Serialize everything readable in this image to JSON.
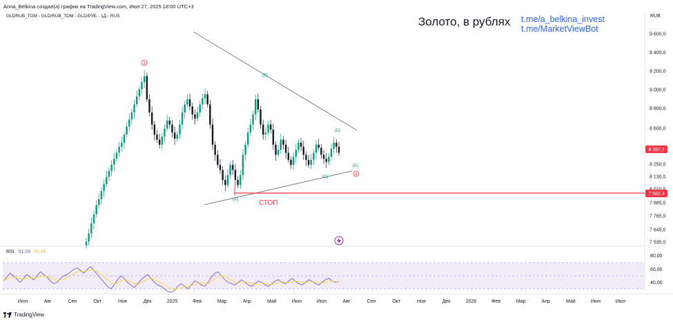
{
  "header": {
    "author_line": "Anna_Belkina создал(а) график на TradingView.com, Июл 27, 2025 18:00 UTC+3",
    "symbol_line": "GLDRUB_TOM - GLD/RUB_TOM - GLD/РУБ - 1Д - RUS"
  },
  "overlay": {
    "headline": "Золото, в рублях",
    "link1": "t.me/a_belkina_invest",
    "link2": "t.me/MarketViewBot",
    "stop_label": "СТОП"
  },
  "price_axis": {
    "currency": "RUB",
    "ticks": [
      "9 600,0",
      "9 400,0",
      "9 200,0",
      "9 000,0",
      "8 800,0",
      "8 600,0",
      "8 250,0",
      "8 130,0",
      "8 010,0",
      "7 885,0",
      "7 765,0",
      "7 645,0",
      "7 535,0"
    ],
    "current_price": "8 397,7",
    "stop_price": "7 982,3",
    "current_color": "#f23645",
    "stop_color": "#f23645"
  },
  "rsi": {
    "label": "RSI",
    "value1": "51,09",
    "value2": "50,44",
    "ticks": [
      "80,00",
      "60,00",
      "40,00"
    ]
  },
  "time_axis": {
    "labels": [
      "Июл",
      "Авг",
      "Сен",
      "Окт",
      "Ноя",
      "Дек",
      "2025",
      "Фев",
      "Мар",
      "Апр",
      "Май",
      "Июн",
      "Июл",
      "Авг",
      "Сен",
      "Окт",
      "Ноя",
      "Дек",
      "2026",
      "Фев",
      "Мар",
      "Апр",
      "Май",
      "Июн",
      "Июл"
    ]
  },
  "footer": {
    "brand": "TradingView",
    "logo_icon": "tradingview-logo-icon"
  },
  "wave_labels": [
    "3",
    "(A)",
    "(B)",
    "(C)",
    "(D)",
    "(E)",
    "4"
  ],
  "chart_data": {
    "type": "candlestick",
    "title": "GLDRUB_TOM - GLD/RUB_TOM - GLD/РУБ - 1Д - RUS",
    "ylabel": "RUB",
    "ylim": [
      7500,
      9700
    ],
    "annotations": {
      "triangle_upper_line": "descending trendline from the wave 3 peak through (B) toward (D)",
      "triangle_lower_line": "ascending trendline through (A) and (C)",
      "stop_level": 7982.3,
      "current_price": 8397.7
    },
    "series": [
      {
        "name": "GLDRUB_TOM",
        "closes": [
          7540,
          7620,
          7720,
          7810,
          7900,
          7960,
          8040,
          8110,
          8180,
          8240,
          8300,
          8360,
          8420,
          8480,
          8520,
          8600,
          8680,
          8750,
          8820,
          8900,
          8980,
          9050,
          9120,
          9180,
          8950,
          8820,
          8700,
          8600,
          8550,
          8500,
          8580,
          8660,
          8740,
          8700,
          8620,
          8560,
          8600,
          8700,
          8820,
          8900,
          8950,
          8880,
          8800,
          8760,
          8820,
          8900,
          8960,
          9000,
          8900,
          8700,
          8500,
          8400,
          8300,
          8250,
          8150,
          8100,
          8200,
          8300,
          8250,
          8150,
          8100,
          8200,
          8400,
          8500,
          8620,
          8700,
          8800,
          8950,
          8850,
          8700,
          8600,
          8620,
          8700,
          8650,
          8500,
          8400,
          8450,
          8550,
          8500,
          8420,
          8350,
          8300,
          8380,
          8450,
          8520,
          8480,
          8400,
          8350,
          8300,
          8350,
          8420,
          8500,
          8470,
          8400,
          8360,
          8330,
          8380,
          8460,
          8520,
          8480,
          8420
        ]
      }
    ],
    "rsi_series": [
      {
        "name": "RSI",
        "values": [
          52,
          58,
          64,
          60,
          55,
          50,
          56,
          62,
          58,
          54,
          60,
          66,
          62,
          58,
          52,
          48,
          50,
          56,
          60,
          62,
          66,
          70,
          72,
          68,
          64,
          70,
          74,
          68,
          62,
          56,
          50,
          44,
          40,
          46,
          54,
          60,
          56,
          50,
          46,
          42,
          48,
          54,
          58,
          62,
          56,
          50,
          46,
          44,
          40,
          36,
          32,
          38,
          44,
          48,
          44,
          40,
          46,
          52,
          50,
          46,
          44,
          50,
          58,
          64,
          66,
          60,
          54,
          50,
          48,
          46,
          50,
          54,
          50,
          46,
          44,
          48,
          52,
          50,
          46,
          44,
          48,
          52,
          54,
          50,
          48,
          52,
          56,
          52,
          48,
          46,
          50,
          54,
          52,
          48,
          46,
          50,
          54,
          56,
          52,
          50,
          51
        ]
      },
      {
        "name": "RSI MA",
        "values": [
          53,
          55,
          57,
          58,
          57,
          55,
          55,
          57,
          57,
          56,
          57,
          59,
          60,
          59,
          57,
          55,
          53,
          53,
          55,
          57,
          60,
          63,
          66,
          67,
          67,
          68,
          69,
          68,
          66,
          63,
          58,
          54,
          50,
          48,
          49,
          52,
          54,
          53,
          51,
          48,
          47,
          49,
          52,
          55,
          56,
          55,
          52,
          49,
          46,
          43,
          40,
          39,
          40,
          42,
          44,
          44,
          45,
          47,
          49,
          49,
          48,
          48,
          51,
          55,
          59,
          60,
          59,
          56,
          53,
          50,
          49,
          50,
          51,
          50,
          48,
          47,
          48,
          49,
          48,
          47,
          47,
          48,
          50,
          51,
          50,
          50,
          51,
          52,
          51,
          50,
          49,
          50,
          51,
          51,
          50,
          49,
          50,
          52,
          52,
          51,
          50
        ]
      }
    ],
    "rsi_ylim": [
      20,
      90
    ]
  }
}
